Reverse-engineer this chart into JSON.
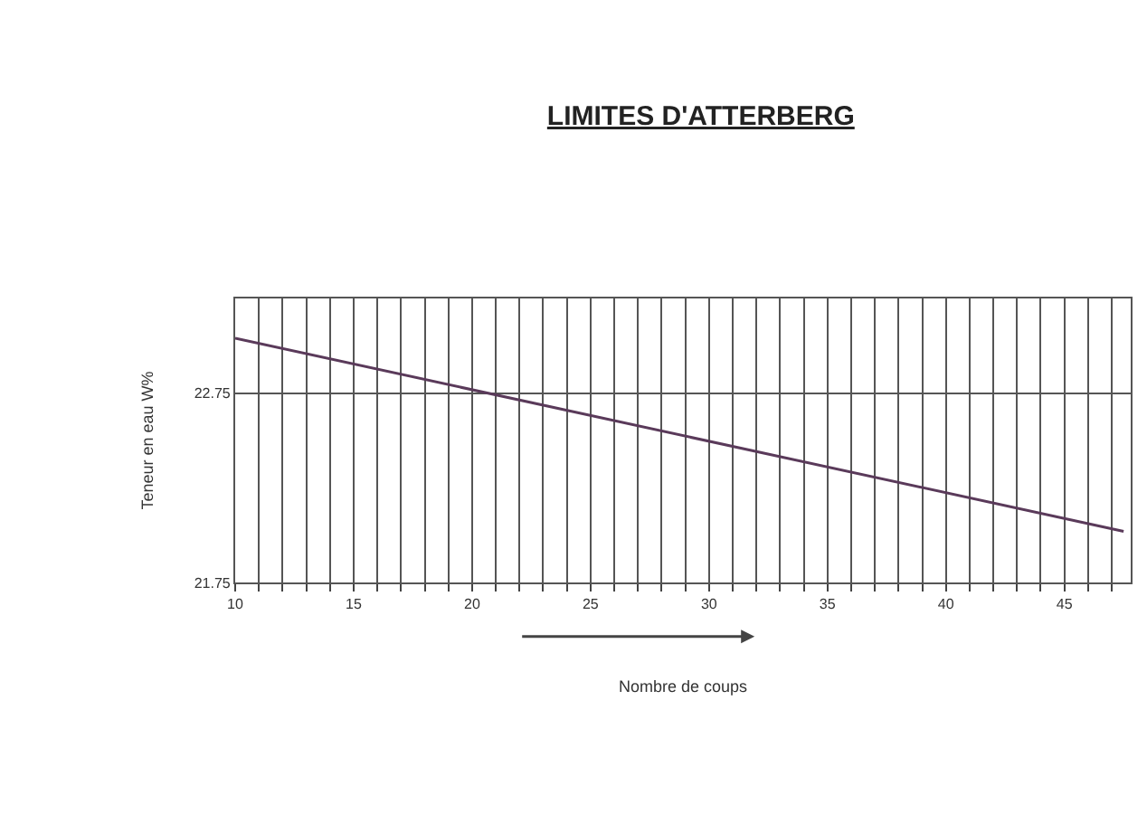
{
  "chart_data": {
    "type": "line",
    "title": "LIMITES D'ATTERBERG",
    "xlabel": "Nombre de coups",
    "ylabel": "Teneur en eau W%",
    "x": [
      10,
      47.5
    ],
    "values": [
      23.04,
      22.02
    ],
    "color": "#5a3a5a",
    "marker": "none",
    "line_style": "solid",
    "xlim": [
      10,
      47.8
    ],
    "ylim": [
      21.75,
      23.25
    ],
    "yticks": [
      21.75,
      22.75
    ],
    "xticks": [
      10,
      {
        "value": 11,
        "label": null
      },
      {
        "value": 12,
        "label": null
      },
      {
        "value": 13,
        "label": null
      },
      {
        "value": 14,
        "label": null
      },
      15,
      {
        "value": 16,
        "label": null
      },
      {
        "value": 17,
        "label": null
      },
      {
        "value": 18,
        "label": null
      },
      {
        "value": 19,
        "label": null
      },
      20,
      {
        "value": 21,
        "label": null
      },
      {
        "value": 22,
        "label": null
      },
      {
        "value": 23,
        "label": null
      },
      {
        "value": 24,
        "label": null
      },
      25,
      {
        "value": 26,
        "label": null
      },
      {
        "value": 27,
        "label": null
      },
      {
        "value": 28,
        "label": null
      },
      {
        "value": 29,
        "label": null
      },
      30,
      {
        "value": 31,
        "label": null
      },
      {
        "value": 32,
        "label": null
      },
      {
        "value": 33,
        "label": null
      },
      {
        "value": 34,
        "label": null
      },
      35,
      {
        "value": 36,
        "label": null
      },
      {
        "value": 37,
        "label": null
      },
      {
        "value": 38,
        "label": null
      },
      {
        "value": 39,
        "label": null
      },
      40,
      {
        "value": 41,
        "label": null
      },
      {
        "value": 42,
        "label": null
      },
      {
        "value": 43,
        "label": null
      },
      {
        "value": 44,
        "label": null
      },
      45,
      {
        "value": 46,
        "label": null
      },
      {
        "value": 47,
        "label": null
      }
    ],
    "grid": true
  }
}
